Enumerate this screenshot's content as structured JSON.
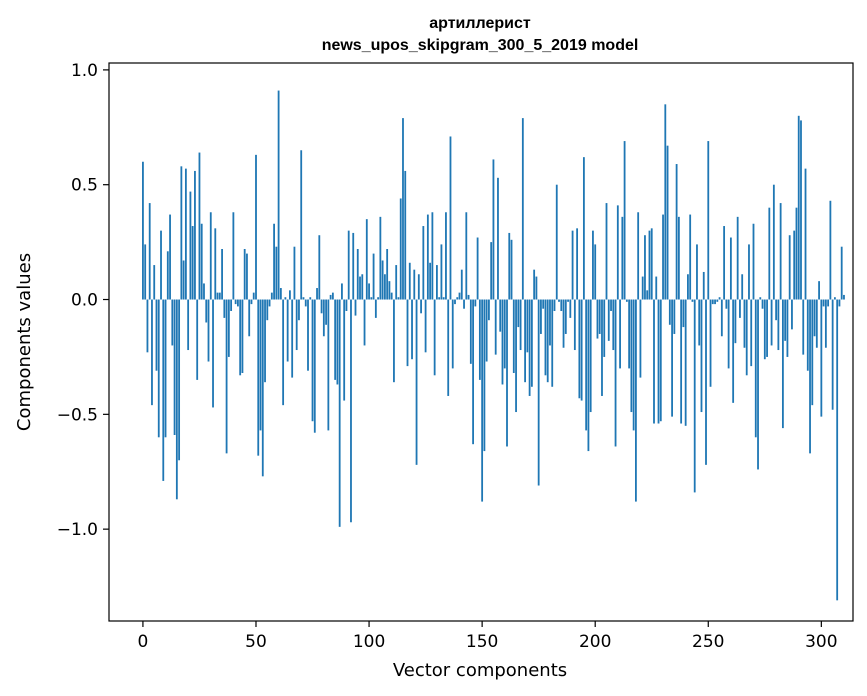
{
  "chart_data": {
    "type": "bar",
    "title": "артиллерист",
    "subtitle": "news_upos_skipgram_300_5_2019 model",
    "xlabel": "Vector components",
    "ylabel": "Components values",
    "xlim": [
      -15,
      314
    ],
    "ylim": [
      -1.4,
      1.03
    ],
    "xticks": [
      0,
      50,
      100,
      150,
      200,
      250,
      300
    ],
    "xtick_labels": [
      "0",
      "50",
      "100",
      "150",
      "200",
      "250",
      "300"
    ],
    "yticks": [
      -1.0,
      -0.5,
      0.0,
      0.5,
      1.0
    ],
    "ytick_labels": [
      "−1.0",
      "−0.5",
      "0.0",
      "0.5",
      "1.0"
    ],
    "grid": false,
    "bar_color": "#1f77b4",
    "values": [
      0.6,
      0.24,
      -0.23,
      0.42,
      -0.46,
      0.15,
      -0.31,
      -0.6,
      0.3,
      -0.79,
      -0.6,
      0.21,
      0.37,
      -0.2,
      -0.59,
      -0.87,
      -0.7,
      0.58,
      0.17,
      0.57,
      -0.22,
      0.47,
      0.32,
      0.56,
      -0.35,
      0.64,
      0.33,
      0.07,
      -0.1,
      -0.27,
      0.38,
      -0.47,
      0.31,
      0.03,
      0.03,
      0.22,
      -0.08,
      -0.67,
      -0.25,
      -0.05,
      0.38,
      -0.02,
      -0.03,
      -0.33,
      -0.32,
      0.22,
      0.2,
      -0.16,
      -0.02,
      0.03,
      0.63,
      -0.68,
      -0.57,
      -0.77,
      -0.36,
      -0.09,
      -0.03,
      0.03,
      0.33,
      0.23,
      0.91,
      0.05,
      -0.46,
      0.01,
      -0.27,
      0.04,
      -0.34,
      0.23,
      -0.22,
      -0.09,
      0.65,
      0.01,
      -0.03,
      -0.31,
      0.01,
      -0.53,
      -0.58,
      0.05,
      0.28,
      -0.06,
      -0.16,
      -0.11,
      -0.57,
      0.02,
      0.03,
      -0.35,
      -0.37,
      -0.99,
      0.07,
      -0.44,
      -0.05,
      0.3,
      -0.97,
      0.29,
      -0.07,
      0.22,
      0.1,
      0.11,
      -0.2,
      0.35,
      0.07,
      0.01,
      0.2,
      -0.08,
      0.01,
      0.36,
      0.17,
      0.11,
      0.22,
      0.08,
      0.03,
      -0.36,
      0.15,
      0.01,
      0.44,
      0.79,
      0.56,
      -0.29,
      0.16,
      -0.26,
      0.13,
      -0.72,
      0.11,
      -0.06,
      0.32,
      -0.23,
      0.37,
      0.16,
      0.38,
      -0.33,
      0.15,
      0.01,
      0.24,
      0.01,
      0.38,
      -0.42,
      0.71,
      -0.3,
      -0.02,
      0.01,
      0.03,
      0.13,
      -0.04,
      0.38,
      0.02,
      -0.28,
      -0.63,
      -0.03,
      0.27,
      -0.35,
      -0.88,
      -0.66,
      -0.27,
      -0.09,
      0.25,
      0.61,
      -0.24,
      0.53,
      -0.14,
      -0.37,
      -0.3,
      -0.64,
      0.29,
      0.26,
      -0.32,
      -0.49,
      -0.12,
      -0.22,
      0.79,
      -0.36,
      -0.23,
      -0.42,
      -0.38,
      0.13,
      0.1,
      -0.81,
      -0.15,
      -0.04,
      -0.33,
      -0.36,
      -0.2,
      -0.38,
      -0.05,
      0.5,
      -0.01,
      -0.05,
      -0.21,
      -0.15,
      -0.01,
      -0.08,
      0.3,
      -0.22,
      0.31,
      -0.43,
      -0.44,
      0.62,
      -0.57,
      -0.66,
      -0.49,
      0.3,
      0.24,
      -0.17,
      -0.15,
      -0.42,
      -0.25,
      0.42,
      -0.18,
      -0.05,
      -0.22,
      -0.64,
      0.41,
      -0.3,
      0.36,
      0.69,
      -0.01,
      -0.3,
      -0.49,
      -0.57,
      -0.88,
      0.38,
      -0.34,
      0.1,
      0.28,
      0.04,
      0.3,
      0.31,
      -0.54,
      0.1,
      -0.54,
      -0.53,
      0.37,
      0.85,
      0.67,
      -0.11,
      -0.51,
      -0.15,
      0.59,
      0.36,
      -0.54,
      -0.12,
      -0.55,
      0.11,
      0.37,
      -0.01,
      -0.84,
      0.24,
      -0.2,
      -0.49,
      0.12,
      -0.72,
      0.69,
      -0.38,
      -0.02,
      -0.02,
      -0.01,
      0.01,
      -0.16,
      0.32,
      -0.04,
      -0.3,
      0.27,
      -0.45,
      -0.19,
      0.36,
      -0.08,
      0.11,
      -0.21,
      -0.33,
      0.24,
      -0.29,
      0.33,
      -0.6,
      -0.74,
      0.01,
      -0.04,
      -0.26,
      -0.25,
      0.4,
      -0.2,
      0.5,
      -0.09,
      -0.22,
      0.42,
      -0.56,
      -0.18,
      -0.25,
      0.28,
      -0.13,
      0.3,
      0.4,
      0.8,
      0.78,
      -0.24,
      0.57,
      -0.31,
      -0.67,
      -0.46,
      -0.16,
      -0.21,
      0.08,
      -0.51,
      -0.03,
      -0.21,
      -0.03,
      0.43,
      -0.48,
      0.01,
      -1.31,
      -0.03,
      0.23,
      0.02
    ]
  }
}
